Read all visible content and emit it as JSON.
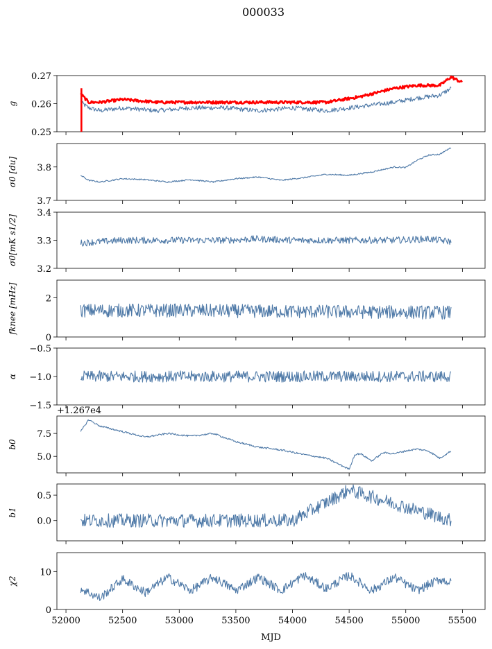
{
  "figure": {
    "title": "000033",
    "xlabel": "MJD",
    "line_color": "#4e79a7",
    "highlight_color": "#ff0000"
  },
  "chart_data": [
    {
      "type": "line",
      "ylabel": "g",
      "ylim": [
        0.25,
        0.27
      ],
      "yticks": [
        "0.25",
        "0.26",
        "0.27"
      ],
      "xlim": [
        51920,
        55700
      ],
      "series": [
        {
          "values_desc": "blue",
          "x": [
            52130,
            52200,
            52300,
            52500,
            52800,
            53100,
            53400,
            53700,
            54000,
            54300,
            54600,
            54900,
            55100,
            55300,
            55400
          ],
          "y": [
            0.2605,
            0.2585,
            0.2575,
            0.2585,
            0.2575,
            0.2585,
            0.2585,
            0.2575,
            0.2585,
            0.2575,
            0.259,
            0.2605,
            0.262,
            0.263,
            0.2655
          ]
        },
        {
          "values_desc": "red",
          "x": [
            52130,
            52200,
            52300,
            52500,
            52800,
            53100,
            53400,
            53700,
            54000,
            54300,
            54600,
            54900,
            55100,
            55300,
            55400,
            55500
          ],
          "y": [
            0.2635,
            0.2605,
            0.2605,
            0.2615,
            0.2605,
            0.2605,
            0.2605,
            0.2605,
            0.2605,
            0.2605,
            0.2625,
            0.2655,
            0.2665,
            0.2665,
            0.2695,
            0.2675
          ]
        }
      ]
    },
    {
      "type": "line",
      "ylabel": "σ0 [du]",
      "ylim": [
        3.7,
        3.87
      ],
      "yticks": [
        "3.7",
        "3.8"
      ],
      "xlim": [
        51920,
        55700
      ],
      "series": [
        {
          "x": [
            52130,
            52200,
            52300,
            52500,
            52700,
            52900,
            53100,
            53300,
            53500,
            53700,
            53900,
            54100,
            54300,
            54500,
            54700,
            54900,
            55000,
            55100,
            55200,
            55300,
            55400
          ],
          "y": [
            3.775,
            3.76,
            3.755,
            3.765,
            3.762,
            3.755,
            3.762,
            3.755,
            3.765,
            3.77,
            3.76,
            3.768,
            3.778,
            3.775,
            3.785,
            3.8,
            3.798,
            3.82,
            3.835,
            3.838,
            3.858
          ]
        }
      ]
    },
    {
      "type": "line",
      "ylabel": "σ0[mK s1/2]",
      "ylim": [
        3.2,
        3.4
      ],
      "yticks": [
        "3.2",
        "3.3",
        "3.4"
      ],
      "xlim": [
        51920,
        55700
      ],
      "series": [
        {
          "x": [
            52130,
            52300,
            52500,
            52800,
            53100,
            53400,
            53700,
            54000,
            54300,
            54600,
            54900,
            55200,
            55400
          ],
          "y": [
            3.29,
            3.295,
            3.3,
            3.3,
            3.3,
            3.3,
            3.305,
            3.3,
            3.3,
            3.3,
            3.3,
            3.305,
            3.295
          ]
        }
      ]
    },
    {
      "type": "line",
      "ylabel": "fknee [mHz]",
      "ylim": [
        0,
        2.9
      ],
      "yticks": [
        "0",
        "2"
      ],
      "xlim": [
        51920,
        55700
      ],
      "series": [
        {
          "x": [
            52130,
            53000,
            54000,
            55400
          ],
          "y": [
            1.35,
            1.35,
            1.3,
            1.25
          ]
        }
      ]
    },
    {
      "type": "line",
      "ylabel": "α",
      "ylim": [
        -1.5,
        -0.5
      ],
      "yticks": [
        "−1.5",
        "−1.0",
        "−0.5"
      ],
      "xlim": [
        51920,
        55700
      ],
      "series": [
        {
          "x": [
            52130,
            53000,
            54000,
            55400
          ],
          "y": [
            -1.0,
            -1.0,
            -1.0,
            -1.0
          ]
        }
      ]
    },
    {
      "type": "line",
      "ylabel": "b0",
      "offset_label": "+1.267e4",
      "ylim": [
        3.2,
        9.4
      ],
      "yticks": [
        "5.0",
        "7.5"
      ],
      "xlim": [
        51920,
        55700
      ],
      "series": [
        {
          "x": [
            52130,
            52200,
            52300,
            52500,
            52700,
            52900,
            53100,
            53300,
            53500,
            53700,
            53900,
            54100,
            54300,
            54500,
            54550,
            54600,
            54700,
            54800,
            54900,
            55000,
            55100,
            55200,
            55300,
            55400
          ],
          "y": [
            7.7,
            9.0,
            8.3,
            7.7,
            7.1,
            7.5,
            7.2,
            7.5,
            6.6,
            6.0,
            5.7,
            5.2,
            4.8,
            3.6,
            5.2,
            5.3,
            4.5,
            5.4,
            5.3,
            5.6,
            5.8,
            5.6,
            4.8,
            5.6
          ]
        }
      ]
    },
    {
      "type": "line",
      "ylabel": "b1",
      "ylim": [
        -0.4,
        0.72
      ],
      "yticks": [
        "0.0",
        "0.5"
      ],
      "xlim": [
        51920,
        55700
      ],
      "series": [
        {
          "x": [
            52130,
            53000,
            54000,
            54500,
            55400
          ],
          "y": [
            0.0,
            0.0,
            0.0,
            0.6,
            0.0
          ]
        }
      ]
    },
    {
      "type": "line",
      "ylabel": "χ2",
      "ylim": [
        0,
        15
      ],
      "yticks": [
        "0",
        "10"
      ],
      "xlabel": "MJD",
      "xticks": [
        "52000",
        "52500",
        "53000",
        "53500",
        "54000",
        "54500",
        "55000",
        "55500"
      ],
      "xlim": [
        51920,
        55700
      ],
      "series": [
        {
          "x": [
            52130,
            52300,
            52500,
            52700,
            52900,
            53100,
            53300,
            53500,
            53700,
            53900,
            54100,
            54300,
            54500,
            54700,
            54900,
            55100,
            55300,
            55400
          ],
          "y": [
            5.5,
            3.0,
            8.0,
            4.5,
            8.5,
            5.0,
            8.5,
            5.0,
            8.5,
            5.0,
            9.0,
            5.5,
            9.0,
            5.0,
            8.5,
            5.0,
            8.0,
            7.0
          ]
        }
      ]
    }
  ]
}
